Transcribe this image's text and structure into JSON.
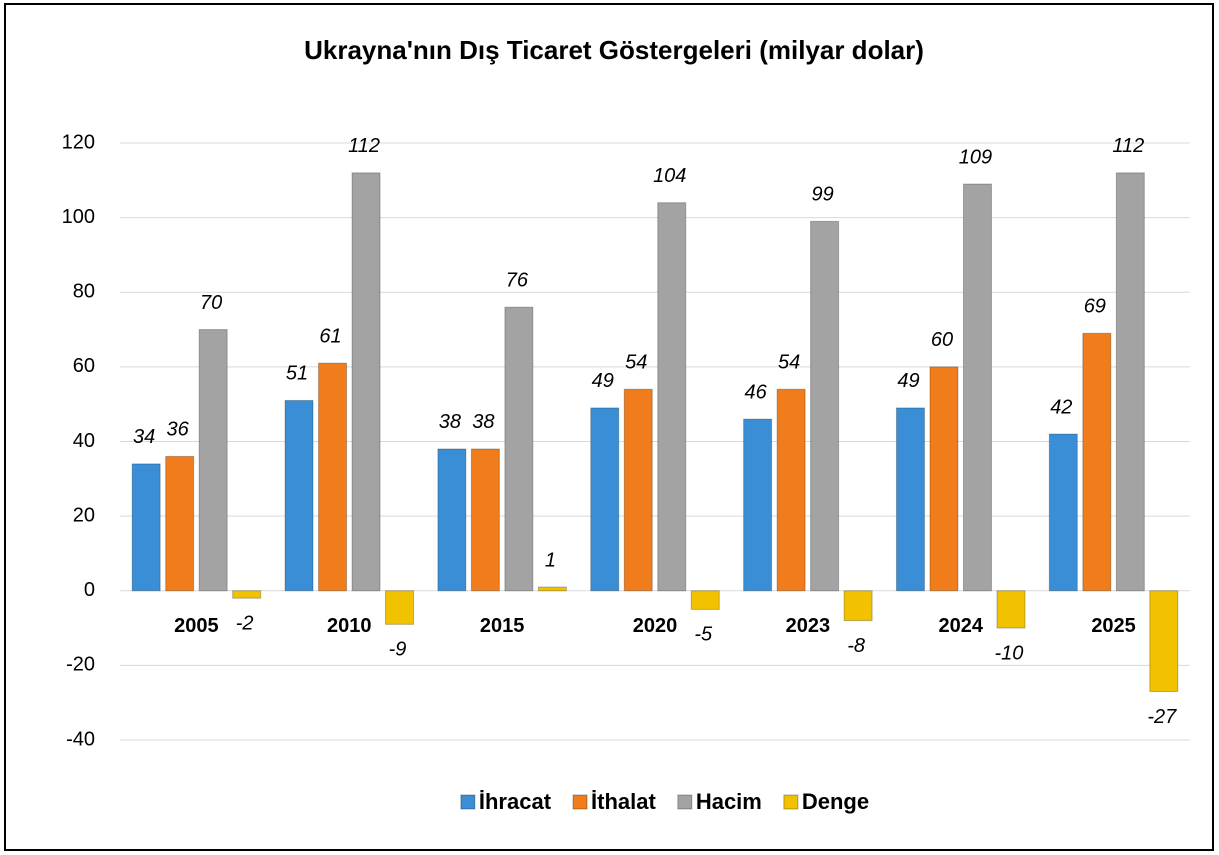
{
  "chart_data": {
    "type": "bar",
    "title": "Ukrayna'nın Dış Ticaret Göstergeleri (milyar dolar)",
    "categories": [
      "2005",
      "2010",
      "2015",
      "2020",
      "2023",
      "2024",
      "2025"
    ],
    "series": [
      {
        "name": "İhracat",
        "color": "#3a8ed6",
        "values": [
          34,
          51,
          38,
          49,
          46,
          49,
          42
        ]
      },
      {
        "name": "İthalat",
        "color": "#f07c1c",
        "values": [
          36,
          61,
          38,
          54,
          54,
          60,
          69
        ]
      },
      {
        "name": "Hacim",
        "color": "#a3a3a3",
        "values": [
          70,
          112,
          76,
          104,
          99,
          109,
          112
        ]
      },
      {
        "name": "Denge",
        "color": "#f2c200",
        "values": [
          -2,
          -9,
          1,
          -5,
          -8,
          -10,
          -27
        ]
      }
    ],
    "ylim": [
      -40,
      120
    ],
    "yticks": [
      -40,
      -20,
      0,
      20,
      40,
      60,
      80,
      100,
      120
    ],
    "grid": true,
    "legend": "bottom"
  }
}
